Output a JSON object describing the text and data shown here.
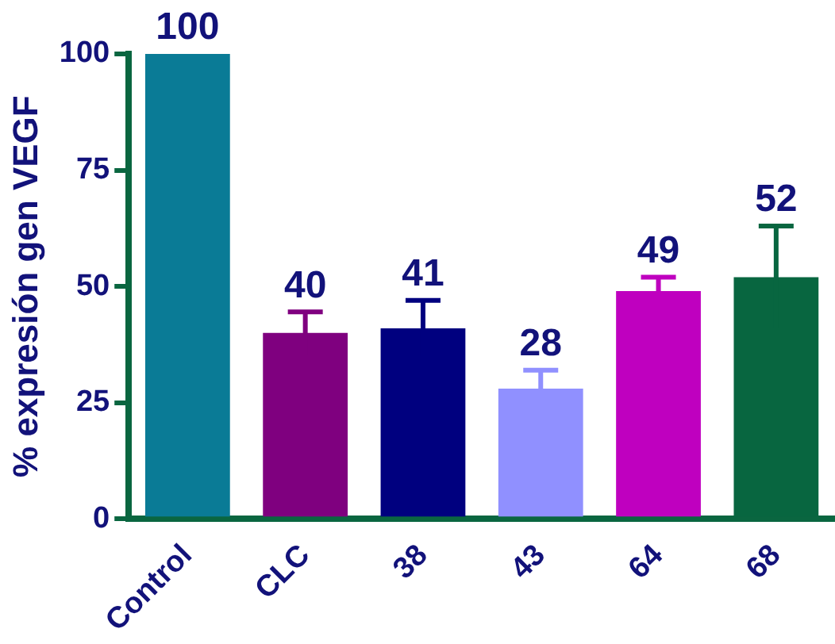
{
  "chart_data": {
    "type": "bar",
    "ylabel": "% expresión gen VEGF",
    "categories": [
      "Control",
      "CLC",
      "38",
      "43",
      "64",
      "68"
    ],
    "values": [
      100,
      40,
      41,
      28,
      49,
      52
    ],
    "errors": [
      null,
      4.5,
      6,
      4,
      3,
      11
    ],
    "colors": [
      "#0a7b96",
      "#7f007f",
      "#00007f",
      "#9090ff",
      "#bf00bf",
      "#086640"
    ],
    "ylim": [
      0,
      100
    ],
    "yticks": [
      0,
      25,
      50,
      75,
      100
    ],
    "grid": false,
    "legend": false,
    "data_labels": true
  }
}
